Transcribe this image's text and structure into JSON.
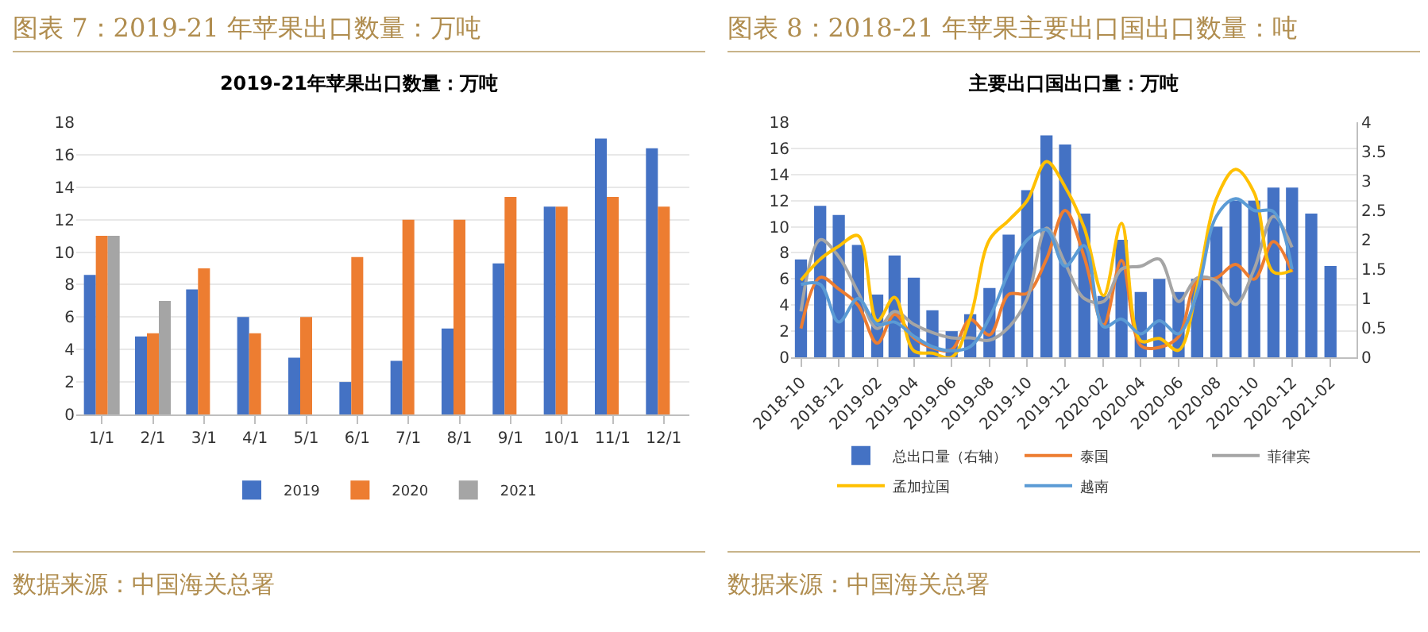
{
  "chart_data": [
    {
      "type": "bar",
      "title": "图表 7：2019-21 年苹果出口数量：万吨",
      "subtitle": "2019-21年苹果出口数量：万吨",
      "categories": [
        "1/1",
        "2/1",
        "3/1",
        "4/1",
        "5/1",
        "6/1",
        "7/1",
        "8/1",
        "9/1",
        "10/1",
        "11/1",
        "12/1"
      ],
      "series": [
        {
          "name": "2019",
          "color": "#4472c4",
          "values": [
            8.6,
            4.8,
            7.7,
            6.0,
            3.5,
            2.0,
            3.3,
            5.3,
            9.3,
            12.8,
            17.0,
            16.4
          ]
        },
        {
          "name": "2020",
          "color": "#ed7d31",
          "values": [
            11.0,
            5.0,
            9.0,
            5.0,
            6.0,
            9.7,
            12.0,
            12.0,
            13.4,
            12.8,
            13.4,
            12.8
          ]
        },
        {
          "name": "2021",
          "color": "#a5a5a5",
          "values": [
            11.0,
            7.0,
            null,
            null,
            null,
            null,
            null,
            null,
            null,
            null,
            null,
            null
          ]
        }
      ],
      "ylim": [
        0,
        18
      ],
      "yticks": [
        0,
        2,
        4,
        6,
        8,
        10,
        12,
        14,
        16,
        18
      ],
      "grid": "y",
      "legend": "bottom",
      "annotations": [
        "数据来源：中国海关总署"
      ]
    },
    {
      "type": "bar",
      "title": "图表 8：2018-21 年苹果主要出口国出口数量：吨",
      "subtitle": "主要出口国出口量：万吨",
      "x": [
        "2018-10",
        "2018-11",
        "2018-12",
        "2019-01",
        "2019-02",
        "2019-03",
        "2019-04",
        "2019-05",
        "2019-06",
        "2019-07",
        "2019-08",
        "2019-09",
        "2019-10",
        "2019-11",
        "2019-12",
        "2020-01",
        "2020-02",
        "2020-03",
        "2020-04",
        "2020-05",
        "2020-06",
        "2020-07",
        "2020-08",
        "2020-09",
        "2020-10",
        "2020-11",
        "2020-12",
        "2021-01",
        "2021-02"
      ],
      "series": [
        {
          "name": "总出口量（右轴）",
          "color": "#4472c4",
          "values": [
            7.5,
            11.6,
            10.9,
            8.6,
            4.8,
            7.8,
            6.1,
            3.6,
            2.0,
            3.3,
            5.3,
            9.4,
            12.8,
            17.0,
            16.3,
            11.0,
            4.7,
            9.0,
            5.0,
            6.0,
            5.0,
            6.0,
            10.0,
            12.0,
            12.0,
            13.0,
            13.0,
            11.0,
            7.0
          ]
        },
        {
          "name": "泰国",
          "type": "line",
          "axis": "y2",
          "color": "#ed7d31",
          "values": [
            0.49,
            1.36,
            1.16,
            0.89,
            0.24,
            0.73,
            0.33,
            0.16,
            0.13,
            0.64,
            0.38,
            1.07,
            1.09,
            1.67,
            2.5,
            1.7,
            0.55,
            1.65,
            0.2,
            0.17,
            0.35,
            1.3,
            1.35,
            1.58,
            1.33,
            1.97,
            1.45,
            null,
            null
          ]
        },
        {
          "name": "菲律宾",
          "type": "line",
          "axis": "y2",
          "color": "#a5a5a5",
          "values": [
            0.78,
            2.0,
            1.71,
            1.11,
            0.49,
            0.78,
            0.56,
            0.42,
            0.33,
            0.33,
            0.29,
            0.51,
            1.0,
            2.2,
            1.6,
            1.0,
            0.95,
            1.5,
            1.55,
            1.67,
            0.95,
            1.35,
            1.3,
            0.9,
            1.5,
            2.4,
            1.87,
            null,
            null
          ]
        },
        {
          "name": "孟加拉国",
          "type": "line",
          "axis": "y2",
          "color": "#ffc000",
          "values": [
            1.31,
            1.67,
            1.89,
            2.07,
            0.62,
            1.02,
            0.11,
            0.07,
            0.0,
            0.67,
            2.0,
            2.33,
            2.67,
            3.33,
            2.9,
            2.2,
            1.05,
            2.28,
            0.28,
            0.32,
            0.12,
            1.2,
            2.7,
            3.2,
            2.8,
            1.45,
            1.48,
            null,
            null
          ]
        },
        {
          "name": "越南",
          "type": "line",
          "axis": "y2",
          "color": "#5b9bd5",
          "values": [
            1.24,
            1.24,
            0.6,
            1.0,
            0.56,
            0.6,
            0.36,
            0.18,
            0.11,
            0.18,
            0.67,
            1.44,
            2.0,
            2.17,
            1.55,
            1.9,
            0.52,
            0.65,
            0.4,
            0.62,
            0.4,
            1.1,
            2.4,
            2.7,
            2.5,
            2.48,
            1.5,
            null,
            null
          ]
        }
      ],
      "xlim": [
        "2018-09-15",
        "2021-03-15"
      ],
      "xticks": [
        "2018-10",
        "2018-12",
        "2019-02",
        "2019-04",
        "2019-06",
        "2019-08",
        "2019-10",
        "2019-12",
        "2020-02",
        "2020-04",
        "2020-06",
        "2020-08",
        "2020-10",
        "2020-12",
        "2021-02"
      ],
      "ylim": [
        0,
        18
      ],
      "yticks": [
        0,
        2,
        4,
        6,
        8,
        10,
        12,
        14,
        16,
        18
      ],
      "y2lim": [
        0,
        4
      ],
      "y2ticks": [
        0,
        0.5,
        1,
        1.5,
        2,
        2.5,
        3,
        3.5,
        4
      ],
      "grid": "y",
      "legend": "bottom",
      "annotations": [
        "数据来源：中国海关总署"
      ]
    }
  ]
}
